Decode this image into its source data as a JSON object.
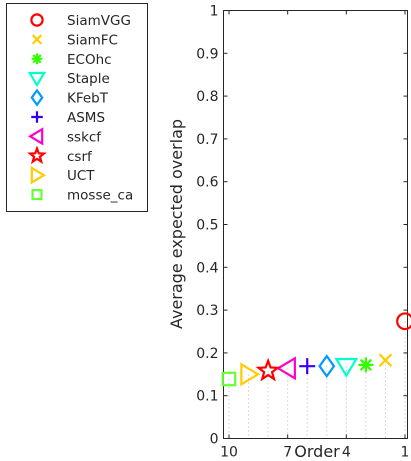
{
  "chart_data": {
    "type": "scatter",
    "title": "",
    "xlabel": "Order",
    "ylabel": "Average expected overlap",
    "xlim": [
      1,
      10
    ],
    "x_reversed": true,
    "ylim": [
      0,
      1
    ],
    "grid": false,
    "legend_position": "outside-left-top",
    "x_ticks": [
      "10",
      "7",
      "4",
      "1"
    ],
    "y_ticks": [
      "0",
      "0.1",
      "0.2",
      "0.3",
      "0.4",
      "0.5",
      "0.6",
      "0.7",
      "0.8",
      "0.9",
      "1"
    ],
    "series": [
      {
        "name": "SiamVGG",
        "x": 1,
        "y": 0.274,
        "marker": "circle",
        "color": "#ff0000"
      },
      {
        "name": "SiamFC",
        "x": 2,
        "y": 0.183,
        "marker": "x",
        "color": "#ffcc00"
      },
      {
        "name": "ECOhc",
        "x": 3,
        "y": 0.172,
        "marker": "asterisk",
        "color": "#33ff00"
      },
      {
        "name": "Staple",
        "x": 4,
        "y": 0.169,
        "marker": "triangle-down",
        "color": "#00ffcc"
      },
      {
        "name": "KFebT",
        "x": 5,
        "y": 0.169,
        "marker": "diamond",
        "color": "#0099ff"
      },
      {
        "name": "ASMS",
        "x": 6,
        "y": 0.169,
        "marker": "plus",
        "color": "#3300ff"
      },
      {
        "name": "sskcf",
        "x": 7,
        "y": 0.164,
        "marker": "triangle-left",
        "color": "#ff00cc"
      },
      {
        "name": "csrf",
        "x": 8,
        "y": 0.158,
        "marker": "star",
        "color": "#ff0000"
      },
      {
        "name": "UCT",
        "x": 9,
        "y": 0.15,
        "marker": "triangle-right",
        "color": "#ffcc00"
      },
      {
        "name": "mosse_ca",
        "x": 10,
        "y": 0.139,
        "marker": "square",
        "color": "#66ff33"
      }
    ]
  }
}
